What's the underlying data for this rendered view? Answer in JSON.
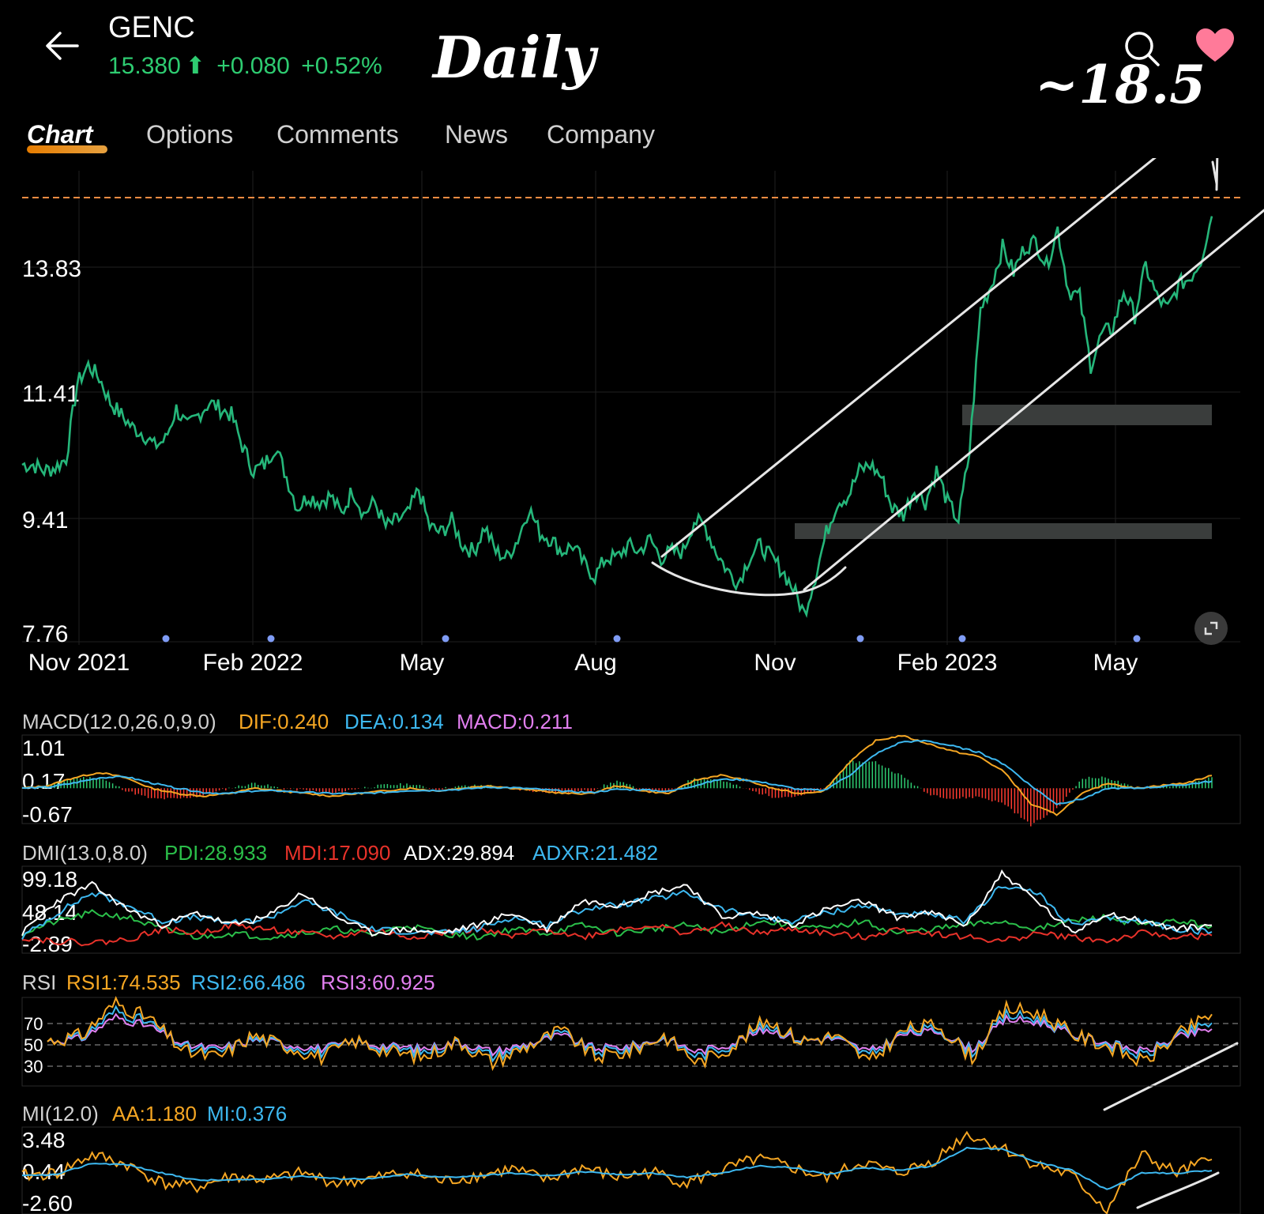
{
  "header": {
    "ticker": "GENC",
    "price": "15.380",
    "change": "+0.080",
    "change_pct": "+0.52%",
    "up_arrow_icon": "arrow-up-icon",
    "annotation_title": "Daily",
    "annotation_target": "~18.5",
    "back_icon": "arrow-left-icon",
    "search_icon": "search-icon",
    "favorite_icon": "heart-icon"
  },
  "tabs": [
    {
      "label": "Chart",
      "active": true
    },
    {
      "label": "Options",
      "active": false
    },
    {
      "label": "Comments",
      "active": false
    },
    {
      "label": "News",
      "active": false
    },
    {
      "label": "Company",
      "active": false
    }
  ],
  "colors": {
    "price_line": "#25b67a",
    "up": "#2ecc71",
    "down": "#ff3b30",
    "dif": "#f5a623",
    "dea": "#3db8f0",
    "macd": "#e27ff0",
    "pdi": "#2bbf4a",
    "mdi": "#e8322a",
    "adx": "#ffffff",
    "adxr": "#3db8f0",
    "rsi1": "#f5a623",
    "rsi2": "#3db8f0",
    "rsi3": "#e27ff0",
    "aa": "#f5a623",
    "mi": "#3db8f0",
    "ref_line": "#ff8c42"
  },
  "chart_data": [
    {
      "type": "line",
      "title": "",
      "y_tick_labels": [
        "13.83",
        "11.41",
        "9.41",
        "7.76"
      ],
      "x_tick_labels": [
        "Nov 2021",
        "Feb 2022",
        "May",
        "Aug",
        "Nov",
        "Feb 2023",
        "May"
      ],
      "ylim": [
        7.76,
        15.3
      ],
      "x_period": "2021-11 to 2023-06 (daily)",
      "series": [
        {
          "values": [
            11.0,
            11.0,
            10.9,
            10.95,
            11.1,
            12.3,
            12.6,
            12.4,
            12.0,
            11.8,
            11.6,
            11.5,
            11.3,
            11.4,
            11.9,
            11.6,
            11.8,
            12.0,
            11.9,
            11.8,
            11.3,
            10.9,
            11.0,
            11.3,
            10.8,
            10.3,
            10.5,
            10.4,
            10.5,
            10.2,
            10.6,
            10.2,
            10.4,
            10.0,
            10.1,
            10.2,
            10.6,
            10.0,
            9.9,
            10.1,
            9.7,
            9.6,
            10.0,
            9.6,
            9.5,
            9.8,
            10.3,
            9.9,
            9.8,
            9.6,
            9.7,
            9.4,
            9.2,
            9.5,
            9.5,
            9.7,
            9.6,
            9.8,
            9.5,
            9.6,
            9.6,
            10.1,
            10.0,
            9.6,
            9.3,
            9.1,
            9.5,
            9.7,
            9.5,
            9.3,
            9.0,
            8.6,
            9.2,
            9.9,
            10.4,
            10.5,
            10.9,
            11.0,
            10.8,
            10.3,
            10.2,
            10.6,
            10.4,
            10.9,
            10.4,
            10.1,
            11.2,
            13.5,
            13.9,
            14.5,
            14.1,
            14.5,
            14.6,
            14.2,
            14.8,
            13.8,
            13.7,
            12.6,
            13.1,
            13.2,
            13.8,
            13.4,
            14.2,
            13.7,
            13.5,
            13.9,
            14.0,
            14.3,
            15.0
          ],
          "note": "approximate closes read off the price chart (chronological)"
        }
      ],
      "reference_line": 15.3,
      "annotations": [
        "upward channel",
        "rounded bottom (cup)",
        "support zone near 11",
        "support zone near 9.2"
      ]
    },
    {
      "type": "line",
      "title": "MACD(12.0,26.0,9.0)",
      "legend": [
        {
          "label": "DIF:0.240",
          "color_key": "dif"
        },
        {
          "label": "DEA:0.134",
          "color_key": "dea"
        },
        {
          "label": "MACD:0.211",
          "color_key": "macd"
        }
      ],
      "y_tick_labels": [
        "1.01",
        "0.17",
        "-0.67"
      ],
      "ylim": [
        -0.67,
        1.01
      ],
      "series": [
        {
          "name": "DIF",
          "values": [
            0.0,
            0.05,
            0.2,
            0.3,
            0.2,
            0.0,
            -0.1,
            -0.15,
            -0.1,
            0.0,
            -0.05,
            -0.1,
            -0.15,
            -0.1,
            -0.05,
            0.0,
            -0.05,
            0.0,
            0.05,
            0.0,
            -0.05,
            -0.1,
            -0.1,
            0.05,
            -0.05,
            -0.1,
            0.15,
            0.25,
            0.15,
            0.0,
            -0.1,
            -0.05,
            0.5,
            0.9,
            1.0,
            0.85,
            0.7,
            0.6,
            0.3,
            -0.3,
            -0.5,
            -0.1,
            0.1,
            0.0,
            0.05,
            0.1,
            0.24
          ]
        },
        {
          "name": "DEA",
          "values": [
            0.0,
            0.02,
            0.1,
            0.2,
            0.22,
            0.1,
            0.0,
            -0.08,
            -0.1,
            -0.05,
            -0.05,
            -0.08,
            -0.1,
            -0.1,
            -0.08,
            -0.04,
            -0.04,
            -0.02,
            0.02,
            0.01,
            -0.02,
            -0.06,
            -0.08,
            -0.02,
            -0.03,
            -0.06,
            0.05,
            0.17,
            0.16,
            0.08,
            -0.02,
            -0.04,
            0.25,
            0.65,
            0.88,
            0.9,
            0.8,
            0.68,
            0.45,
            0.05,
            -0.3,
            -0.2,
            0.0,
            0.0,
            0.03,
            0.07,
            0.134
          ]
        },
        {
          "name": "MACD",
          "values": [
            0.0,
            0.06,
            0.2,
            0.2,
            -0.04,
            -0.2,
            -0.2,
            -0.14,
            0.0,
            0.1,
            0.0,
            -0.04,
            -0.1,
            0.0,
            0.06,
            0.08,
            -0.02,
            0.04,
            0.06,
            -0.02,
            -0.06,
            -0.08,
            -0.04,
            0.14,
            -0.04,
            -0.08,
            0.2,
            0.16,
            -0.02,
            -0.16,
            -0.16,
            -0.02,
            0.5,
            0.5,
            0.24,
            -0.1,
            -0.2,
            -0.16,
            -0.3,
            -0.7,
            -0.4,
            0.2,
            0.2,
            0.0,
            0.04,
            0.06,
            0.211
          ]
        }
      ]
    },
    {
      "type": "line",
      "title": "DMI(13.0,8.0)",
      "legend": [
        {
          "label": "PDI:28.933",
          "color_key": "pdi"
        },
        {
          "label": "MDI:17.090",
          "color_key": "mdi"
        },
        {
          "label": "ADX:29.894",
          "color_key": "adx"
        },
        {
          "label": "ADXR:21.482",
          "color_key": "adxr"
        }
      ],
      "y_tick_labels": [
        "99.18",
        "48.14",
        "-2.89"
      ],
      "ylim": [
        -2.89,
        99.18
      ],
      "series": [
        {
          "name": "PDI",
          "values": [
            20,
            35,
            45,
            40,
            25,
            15,
            20,
            15,
            20,
            25,
            18,
            30,
            20,
            15,
            25,
            20,
            30,
            20,
            25,
            30,
            20,
            35,
            30,
            25,
            35,
            20,
            25,
            30,
            35,
            25,
            35,
            40,
            30,
            35,
            28.9
          ]
        },
        {
          "name": "MDI",
          "values": [
            15,
            10,
            8,
            12,
            25,
            20,
            30,
            25,
            20,
            15,
            25,
            15,
            20,
            25,
            15,
            25,
            15,
            25,
            30,
            20,
            30,
            20,
            25,
            20,
            15,
            25,
            20,
            15,
            10,
            20,
            15,
            10,
            20,
            15,
            17.1
          ]
        },
        {
          "name": "ADX",
          "values": [
            20,
            60,
            80,
            50,
            30,
            45,
            30,
            40,
            70,
            40,
            20,
            25,
            20,
            30,
            45,
            25,
            60,
            55,
            70,
            80,
            40,
            45,
            30,
            50,
            60,
            40,
            45,
            30,
            95,
            60,
            20,
            45,
            35,
            25,
            29.9
          ]
        },
        {
          "name": "ADXR",
          "values": [
            15,
            45,
            70,
            55,
            35,
            40,
            32,
            38,
            60,
            45,
            25,
            22,
            20,
            25,
            40,
            30,
            50,
            55,
            62,
            70,
            50,
            40,
            35,
            45,
            55,
            45,
            42,
            35,
            80,
            70,
            30,
            38,
            35,
            25,
            21.5
          ]
        }
      ]
    },
    {
      "type": "line",
      "title": "RSI",
      "legend": [
        {
          "label": "RSI1:74.535",
          "color_key": "rsi1"
        },
        {
          "label": "RSI2:66.486",
          "color_key": "rsi2"
        },
        {
          "label": "RSI3:60.925",
          "color_key": "rsi3"
        }
      ],
      "y_tick_labels": [
        "70",
        "50",
        "30"
      ],
      "ylim": [
        10,
        90
      ],
      "series": [
        {
          "name": "RSI1",
          "values": [
            50,
            55,
            85,
            70,
            40,
            35,
            55,
            45,
            35,
            50,
            40,
            35,
            50,
            30,
            45,
            60,
            35,
            40,
            55,
            30,
            45,
            70,
            50,
            55,
            30,
            60,
            65,
            35,
            80,
            75,
            55,
            45,
            30,
            55,
            74.5
          ]
        },
        {
          "name": "RSI2",
          "values": [
            50,
            53,
            78,
            66,
            44,
            40,
            52,
            46,
            40,
            49,
            43,
            40,
            49,
            36,
            46,
            57,
            40,
            43,
            53,
            36,
            47,
            65,
            51,
            53,
            36,
            58,
            61,
            40,
            74,
            70,
            55,
            47,
            36,
            54,
            66.5
          ]
        },
        {
          "name": "RSI3",
          "values": [
            50,
            52,
            72,
            63,
            46,
            43,
            51,
            47,
            43,
            49,
            45,
            43,
            49,
            40,
            47,
            55,
            43,
            45,
            52,
            40,
            48,
            61,
            51,
            52,
            40,
            56,
            59,
            43,
            70,
            67,
            55,
            48,
            40,
            53,
            60.9
          ]
        }
      ]
    },
    {
      "type": "line",
      "title": "MI(12.0)",
      "legend": [
        {
          "label": "AA:1.180",
          "color_key": "aa"
        },
        {
          "label": "MI:0.376",
          "color_key": "mi"
        }
      ],
      "y_tick_labels": [
        "3.48",
        "0.44",
        "-2.60"
      ],
      "ylim": [
        -2.6,
        3.48
      ],
      "series": [
        {
          "name": "AA",
          "values": [
            0.0,
            0.2,
            1.5,
            0.8,
            -0.5,
            -0.8,
            0.0,
            -0.3,
            0.2,
            -0.5,
            -0.2,
            0.3,
            -0.4,
            0.0,
            0.5,
            -0.3,
            0.6,
            -0.1,
            0.3,
            -0.5,
            0.4,
            1.2,
            0.6,
            -0.2,
            1.0,
            0.2,
            1.0,
            3.0,
            2.0,
            0.8,
            0.0,
            -2.4,
            1.5,
            0.2,
            1.18
          ]
        },
        {
          "name": "MI",
          "values": [
            0.0,
            0.1,
            0.9,
            0.8,
            0.2,
            -0.3,
            -0.3,
            -0.2,
            0.0,
            -0.2,
            -0.2,
            0.1,
            -0.1,
            0.0,
            0.2,
            0.0,
            0.3,
            0.1,
            0.2,
            -0.1,
            0.2,
            0.7,
            0.6,
            0.1,
            0.6,
            0.4,
            0.7,
            2.0,
            1.9,
            1.0,
            0.4,
            -1.0,
            0.2,
            0.2,
            0.376
          ]
        }
      ]
    }
  ]
}
